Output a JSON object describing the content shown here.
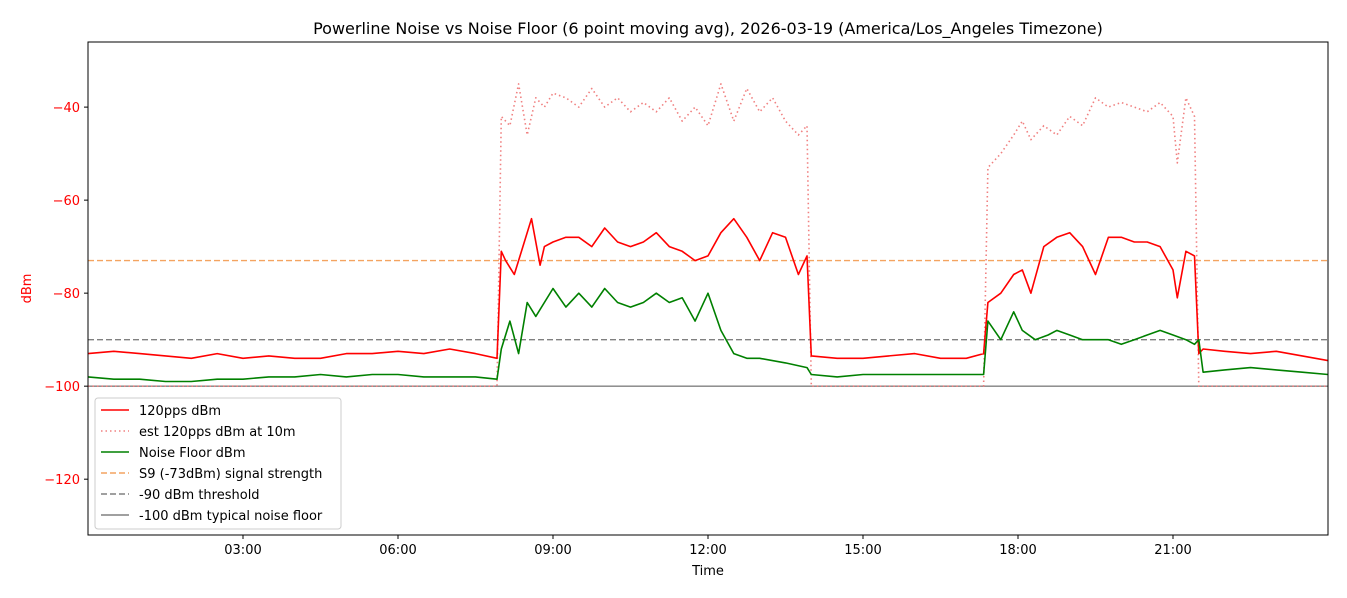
{
  "chart_data": {
    "type": "line",
    "title": "Powerline Noise vs Noise Floor (6 point moving avg), 2026-03-19 (America/Los_Angeles Timezone)",
    "xlabel": "Time",
    "ylabel": "dBm",
    "xlim": [
      "00:00",
      "24:00"
    ],
    "ylim": [
      -132,
      -26
    ],
    "x_ticks": [
      "03:00",
      "06:00",
      "09:00",
      "12:00",
      "15:00",
      "18:00",
      "21:00"
    ],
    "y_ticks": [
      -40,
      -60,
      -80,
      -100,
      -120
    ],
    "y_tick_labels": [
      "−40",
      "−60",
      "−80",
      "−100",
      "−120"
    ],
    "grid": false,
    "legend_position": "lower-left",
    "colors": {
      "signal": "#ff0000",
      "est": "#f08080",
      "noise": "#008000",
      "s9": "#f4a460",
      "threshold": "#808080",
      "floor": "#808080",
      "ylabel_color": "#ff0000"
    },
    "series": [
      {
        "name": "120pps dBm",
        "style": "solid",
        "x": [
          "00:00",
          "00:30",
          "01:00",
          "01:30",
          "02:00",
          "02:30",
          "03:00",
          "03:30",
          "04:00",
          "04:30",
          "05:00",
          "05:30",
          "06:00",
          "06:30",
          "07:00",
          "07:30",
          "07:55",
          "08:00",
          "08:05",
          "08:15",
          "08:25",
          "08:35",
          "08:45",
          "08:50",
          "09:00",
          "09:15",
          "09:30",
          "09:45",
          "10:00",
          "10:15",
          "10:30",
          "10:45",
          "11:00",
          "11:15",
          "11:30",
          "11:45",
          "12:00",
          "12:15",
          "12:30",
          "12:45",
          "13:00",
          "13:15",
          "13:30",
          "13:45",
          "13:55",
          "14:00",
          "14:30",
          "15:00",
          "15:30",
          "16:00",
          "16:30",
          "17:00",
          "17:20",
          "17:25",
          "17:40",
          "17:55",
          "18:05",
          "18:15",
          "18:30",
          "18:45",
          "19:00",
          "19:15",
          "19:30",
          "19:45",
          "20:00",
          "20:15",
          "20:30",
          "20:45",
          "21:00",
          "21:05",
          "21:15",
          "21:25",
          "21:30",
          "21:35",
          "22:00",
          "22:30",
          "23:00",
          "23:30",
          "24:00"
        ],
        "values": [
          -93,
          -92.5,
          -93,
          -93.5,
          -94,
          -93,
          -94,
          -93.5,
          -94,
          -94,
          -93,
          -93,
          -92.5,
          -93,
          -92,
          -93,
          -94,
          -71,
          -73,
          -76,
          -70,
          -64,
          -74,
          -70,
          -69,
          -68,
          -68,
          -70,
          -66,
          -69,
          -70,
          -69,
          -67,
          -70,
          -71,
          -73,
          -72,
          -67,
          -64,
          -68,
          -73,
          -67,
          -68,
          -76,
          -72,
          -93.5,
          -94,
          -94,
          -93.5,
          -93,
          -94,
          -94,
          -93,
          -82,
          -80,
          -76,
          -75,
          -80,
          -70,
          -68,
          -67,
          -70,
          -76,
          -68,
          -68,
          -69,
          -69,
          -70,
          -75,
          -81,
          -71,
          -72,
          -93,
          -92,
          -92.5,
          -93,
          -92.5,
          -93.5,
          -94.5
        ]
      },
      {
        "name": "est 120pps dBm at 10m",
        "style": "dotted",
        "x": [
          "00:00",
          "07:55",
          "08:00",
          "08:10",
          "08:20",
          "08:30",
          "08:40",
          "08:50",
          "09:00",
          "09:15",
          "09:30",
          "09:45",
          "10:00",
          "10:15",
          "10:30",
          "10:45",
          "11:00",
          "11:15",
          "11:30",
          "11:45",
          "12:00",
          "12:15",
          "12:30",
          "12:45",
          "13:00",
          "13:15",
          "13:30",
          "13:45",
          "13:55",
          "14:00",
          "17:20",
          "17:25",
          "17:40",
          "17:55",
          "18:05",
          "18:15",
          "18:30",
          "18:45",
          "19:00",
          "19:15",
          "19:30",
          "19:45",
          "20:00",
          "20:15",
          "20:30",
          "20:45",
          "21:00",
          "21:05",
          "21:15",
          "21:25",
          "21:30",
          "24:00"
        ],
        "values": [
          -100,
          -100,
          -42,
          -44,
          -35,
          -46,
          -38,
          -40,
          -37,
          -38,
          -40,
          -36,
          -40,
          -38,
          -41,
          -39,
          -41,
          -38,
          -43,
          -40,
          -44,
          -35,
          -43,
          -36,
          -41,
          -38,
          -43,
          -46,
          -44,
          -100,
          -100,
          -53,
          -50,
          -46,
          -43,
          -47,
          -44,
          -46,
          -42,
          -44,
          -38,
          -40,
          -39,
          -40,
          -41,
          -39,
          -42,
          -52,
          -38,
          -42,
          -100,
          -100
        ]
      },
      {
        "name": "Noise Floor dBm",
        "style": "solid",
        "x": [
          "00:00",
          "00:30",
          "01:00",
          "01:30",
          "02:00",
          "02:30",
          "03:00",
          "03:30",
          "04:00",
          "04:30",
          "05:00",
          "05:30",
          "06:00",
          "06:30",
          "07:00",
          "07:30",
          "07:55",
          "08:00",
          "08:10",
          "08:20",
          "08:30",
          "08:40",
          "09:00",
          "09:15",
          "09:30",
          "09:45",
          "10:00",
          "10:15",
          "10:30",
          "10:45",
          "11:00",
          "11:15",
          "11:30",
          "11:45",
          "12:00",
          "12:15",
          "12:30",
          "12:45",
          "13:00",
          "13:30",
          "13:55",
          "14:00",
          "14:30",
          "15:00",
          "15:30",
          "16:00",
          "16:30",
          "17:00",
          "17:20",
          "17:25",
          "17:40",
          "17:55",
          "18:05",
          "18:20",
          "18:35",
          "18:45",
          "19:00",
          "19:15",
          "19:30",
          "19:45",
          "20:00",
          "20:15",
          "20:30",
          "20:45",
          "21:00",
          "21:15",
          "21:25",
          "21:30",
          "21:35",
          "22:00",
          "22:30",
          "23:00",
          "23:30",
          "24:00"
        ],
        "values": [
          -98,
          -98.5,
          -98.5,
          -99,
          -99,
          -98.5,
          -98.5,
          -98,
          -98,
          -97.5,
          -98,
          -97.5,
          -97.5,
          -98,
          -98,
          -98,
          -98.5,
          -92,
          -86,
          -93,
          -82,
          -85,
          -79,
          -83,
          -80,
          -83,
          -79,
          -82,
          -83,
          -82,
          -80,
          -82,
          -81,
          -86,
          -80,
          -88,
          -93,
          -94,
          -94,
          -95,
          -96,
          -97.5,
          -98,
          -97.5,
          -97.5,
          -97.5,
          -97.5,
          -97.5,
          -97.5,
          -86,
          -90,
          -84,
          -88,
          -90,
          -89,
          -88,
          -89,
          -90,
          -90,
          -90,
          -91,
          -90,
          -89,
          -88,
          -89,
          -90,
          -91,
          -90,
          -97,
          -96.5,
          -96,
          -96.5,
          -97,
          -97.5
        ]
      },
      {
        "name": "S9 (-73dBm) signal strength",
        "style": "dashed",
        "x": [
          "00:00",
          "24:00"
        ],
        "values": [
          -73,
          -73
        ]
      },
      {
        "name": "-90 dBm threshold",
        "style": "dashed",
        "x": [
          "00:00",
          "24:00"
        ],
        "values": [
          -90,
          -90
        ]
      },
      {
        "name": "-100 dBm typical noise floor",
        "style": "solid",
        "x": [
          "00:00",
          "24:00"
        ],
        "values": [
          -100,
          -100
        ]
      }
    ]
  }
}
